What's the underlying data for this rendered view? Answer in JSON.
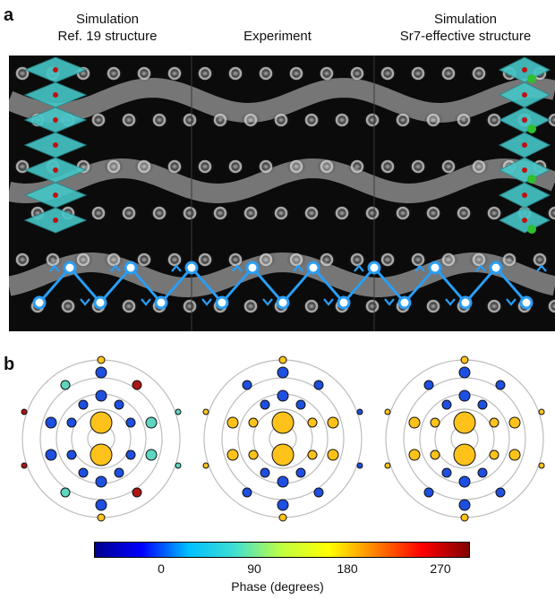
{
  "panel_a": {
    "letter": "a",
    "titles": [
      {
        "line1": "Simulation",
        "line2": "Ref. 19 structure"
      },
      {
        "line1": "",
        "line2": "Experiment"
      },
      {
        "line1": "Simulation",
        "line2": "Sr7-effective structure"
      }
    ]
  },
  "panel_b": {
    "letter": "b",
    "colorbar": {
      "label": "Phase (degrees)",
      "ticks": [
        "0",
        "90",
        "180",
        "270"
      ],
      "range": [
        -60,
        300
      ],
      "colors": [
        "#00008f",
        "#0000ff",
        "#00bfff",
        "#40e0d0",
        "#c0ff40",
        "#ffff00",
        "#ff8000",
        "#ff0000",
        "#800000"
      ]
    },
    "colors": {
      "ring": "#bdbdbd",
      "blue": "#1e4fe0",
      "yellow": "#ffc21a",
      "teal": "#5ed6c0",
      "red": "#b01414",
      "outline": "#111111"
    }
  },
  "accent": "#2a9df4"
}
